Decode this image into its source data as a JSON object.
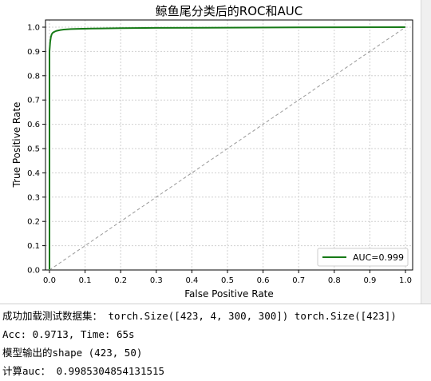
{
  "colors": {
    "roc_line": "#167a16",
    "diagonal": "#999999",
    "grid": "#d0d0d0"
  },
  "chart_data": {
    "type": "line",
    "title": "鲸鱼尾分类后的ROC和AUC",
    "xlabel": "False Positive Rate",
    "ylabel": "True Positive Rate",
    "xlim": [
      0,
      1
    ],
    "ylim": [
      0,
      1
    ],
    "xticks": [
      "0.0",
      "0.1",
      "0.2",
      "0.3",
      "0.4",
      "0.5",
      "0.6",
      "0.7",
      "0.8",
      "0.9",
      "1.0"
    ],
    "yticks": [
      "0.0",
      "0.1",
      "0.2",
      "0.3",
      "0.4",
      "0.5",
      "0.6",
      "0.7",
      "0.8",
      "0.9",
      "1.0"
    ],
    "grid": true,
    "legend_position": "lower-right",
    "series": [
      {
        "name": "AUC=0.999",
        "style": "solid",
        "x": [
          0.0,
          0.0,
          0.002,
          0.004,
          0.006,
          0.008,
          0.01,
          0.015,
          0.02,
          0.03,
          0.04,
          0.06,
          0.08,
          0.12,
          0.2,
          0.3,
          0.5,
          0.7,
          1.0
        ],
        "y": [
          0.0,
          0.9,
          0.94,
          0.96,
          0.97,
          0.975,
          0.978,
          0.982,
          0.985,
          0.988,
          0.99,
          0.992,
          0.993,
          0.994,
          0.996,
          0.997,
          0.998,
          0.999,
          1.0
        ]
      },
      {
        "style": "dashed",
        "x": [
          0,
          1
        ],
        "y": [
          0,
          1
        ]
      }
    ]
  },
  "output": {
    "line1": "成功加载测试数据集： torch.Size([423, 4, 300, 300]) torch.Size([423])",
    "line2": "Acc: 0.9713, Time: 65s",
    "line3": "模型输出的shape (423, 50)",
    "line4": "计算auc： 0.9985304854131515"
  }
}
